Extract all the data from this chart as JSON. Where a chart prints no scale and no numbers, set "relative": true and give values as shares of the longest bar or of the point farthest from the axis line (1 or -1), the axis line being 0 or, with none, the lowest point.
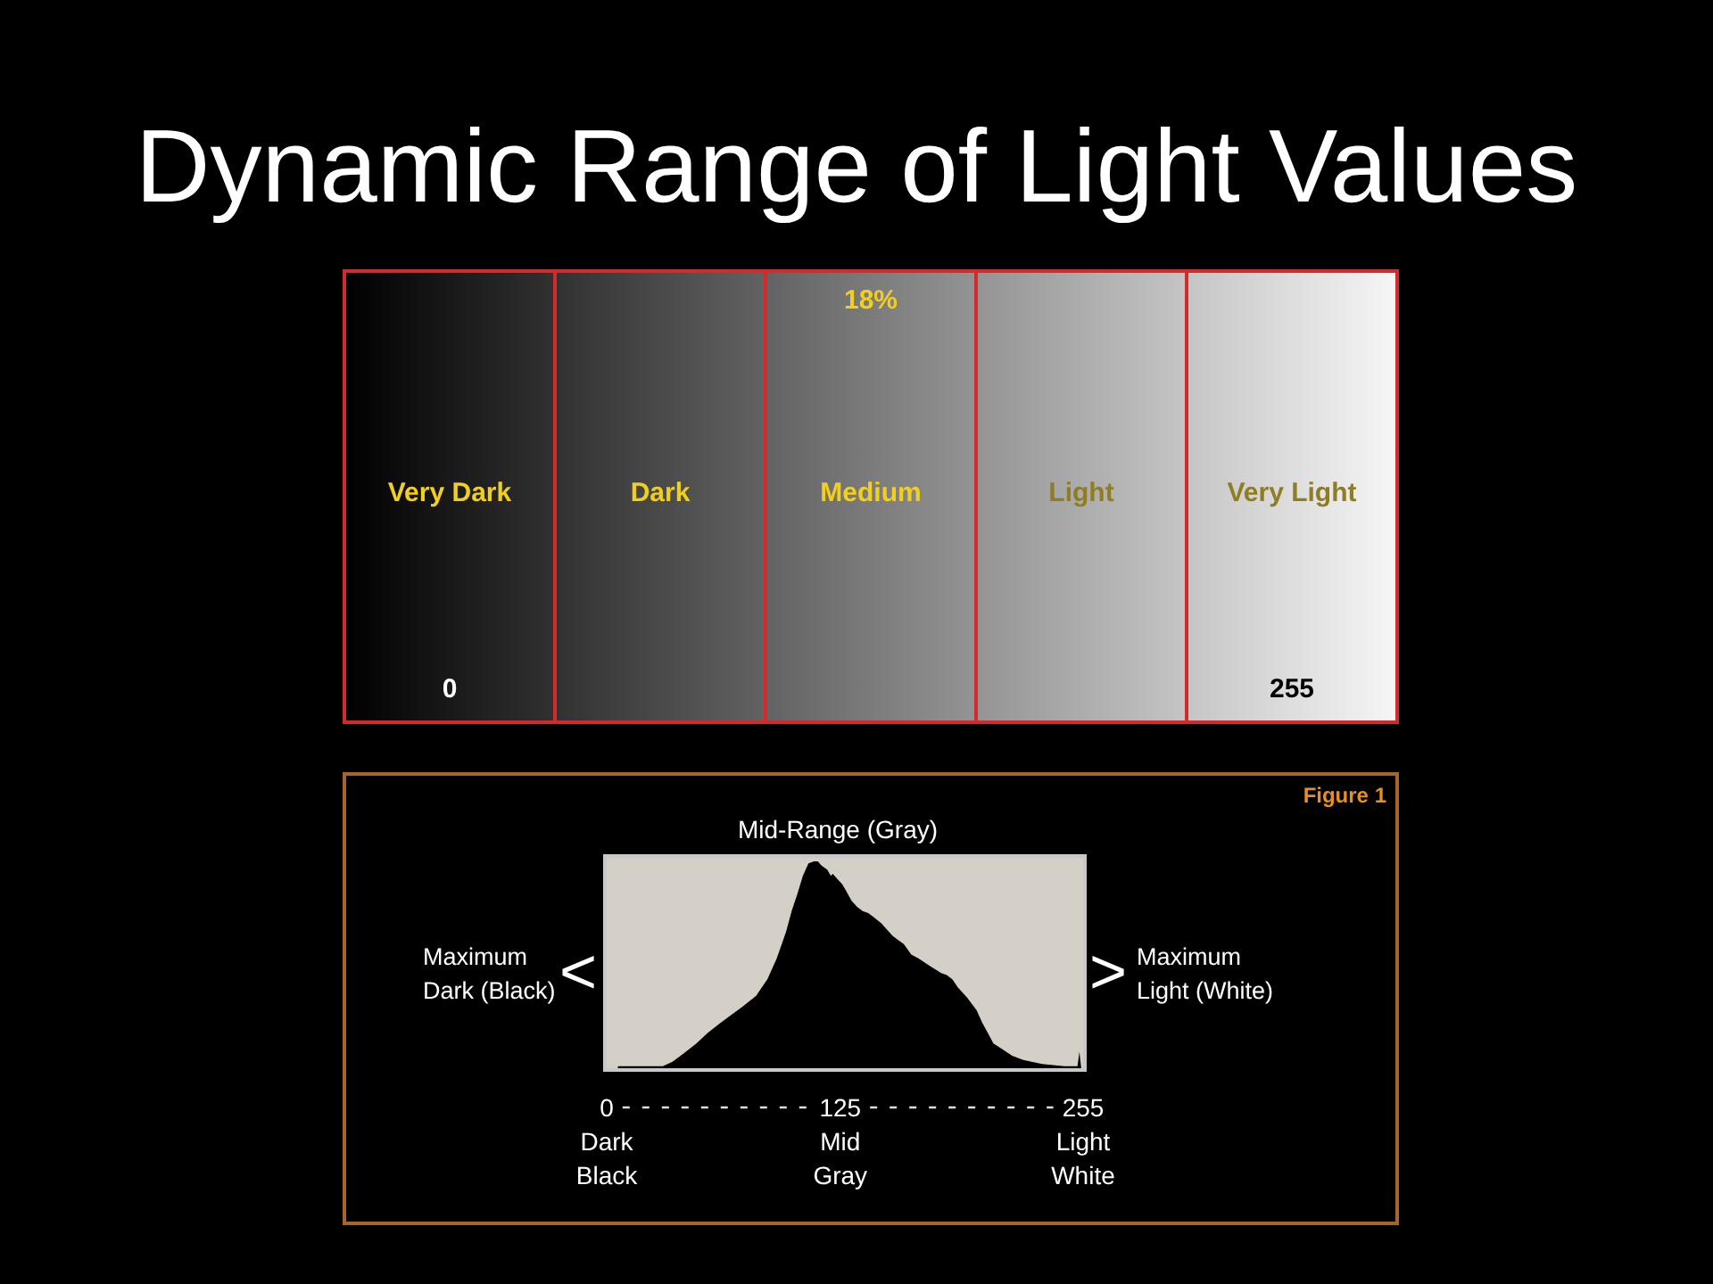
{
  "chart_data": [
    {
      "type": "other",
      "title": "Dynamic Range of Light Values",
      "categories": [
        "Very Dark",
        "Dark",
        "Medium",
        "Light",
        "Very Light"
      ],
      "annotations": [
        "18%",
        "0",
        "255"
      ]
    },
    {
      "type": "area",
      "title": "Mid-Range (Gray)",
      "relative": true,
      "x": [
        6,
        30,
        35,
        41,
        48,
        54,
        61,
        67,
        73,
        80,
        86,
        91,
        96,
        99,
        102,
        105,
        108,
        111,
        113,
        115,
        118,
        120,
        121,
        124,
        126,
        128,
        131,
        134,
        137,
        140,
        143,
        147,
        150,
        153,
        156,
        159,
        163,
        167,
        172,
        179,
        182,
        185,
        188,
        193,
        198,
        201,
        204,
        207,
        212,
        217,
        223,
        233,
        245,
        252,
        253,
        254
      ],
      "series": [
        {
          "color": "#000000",
          "values": [
            0.01,
            0.01,
            0.03,
            0.07,
            0.12,
            0.17,
            0.22,
            0.26,
            0.3,
            0.35,
            0.43,
            0.53,
            0.66,
            0.76,
            0.84,
            0.93,
            0.99,
            1,
            1,
            0.98,
            0.96,
            0.93,
            0.94,
            0.91,
            0.89,
            0.86,
            0.81,
            0.78,
            0.76,
            0.75,
            0.73,
            0.7,
            0.67,
            0.64,
            0.62,
            0.6,
            0.55,
            0.53,
            0.5,
            0.46,
            0.45,
            0.43,
            0.39,
            0.34,
            0.28,
            0.22,
            0.17,
            0.12,
            0.09,
            0.06,
            0.04,
            0.02,
            0.01,
            0.01,
            0.08,
            0
          ]
        }
      ],
      "xlim": [
        0,
        255
      ],
      "xticks": [
        {
          "value": 0,
          "label": "0\nDark\nBlack"
        },
        {
          "value": 125,
          "label": "125\nMid\nGray"
        },
        {
          "value": 255,
          "label": "255\nLight\nWhite"
        }
      ],
      "annotations": [
        "Figure 1",
        "Maximum\nDark (Black)",
        "<",
        ">",
        "Maximum\nLight (White)"
      ]
    }
  ]
}
